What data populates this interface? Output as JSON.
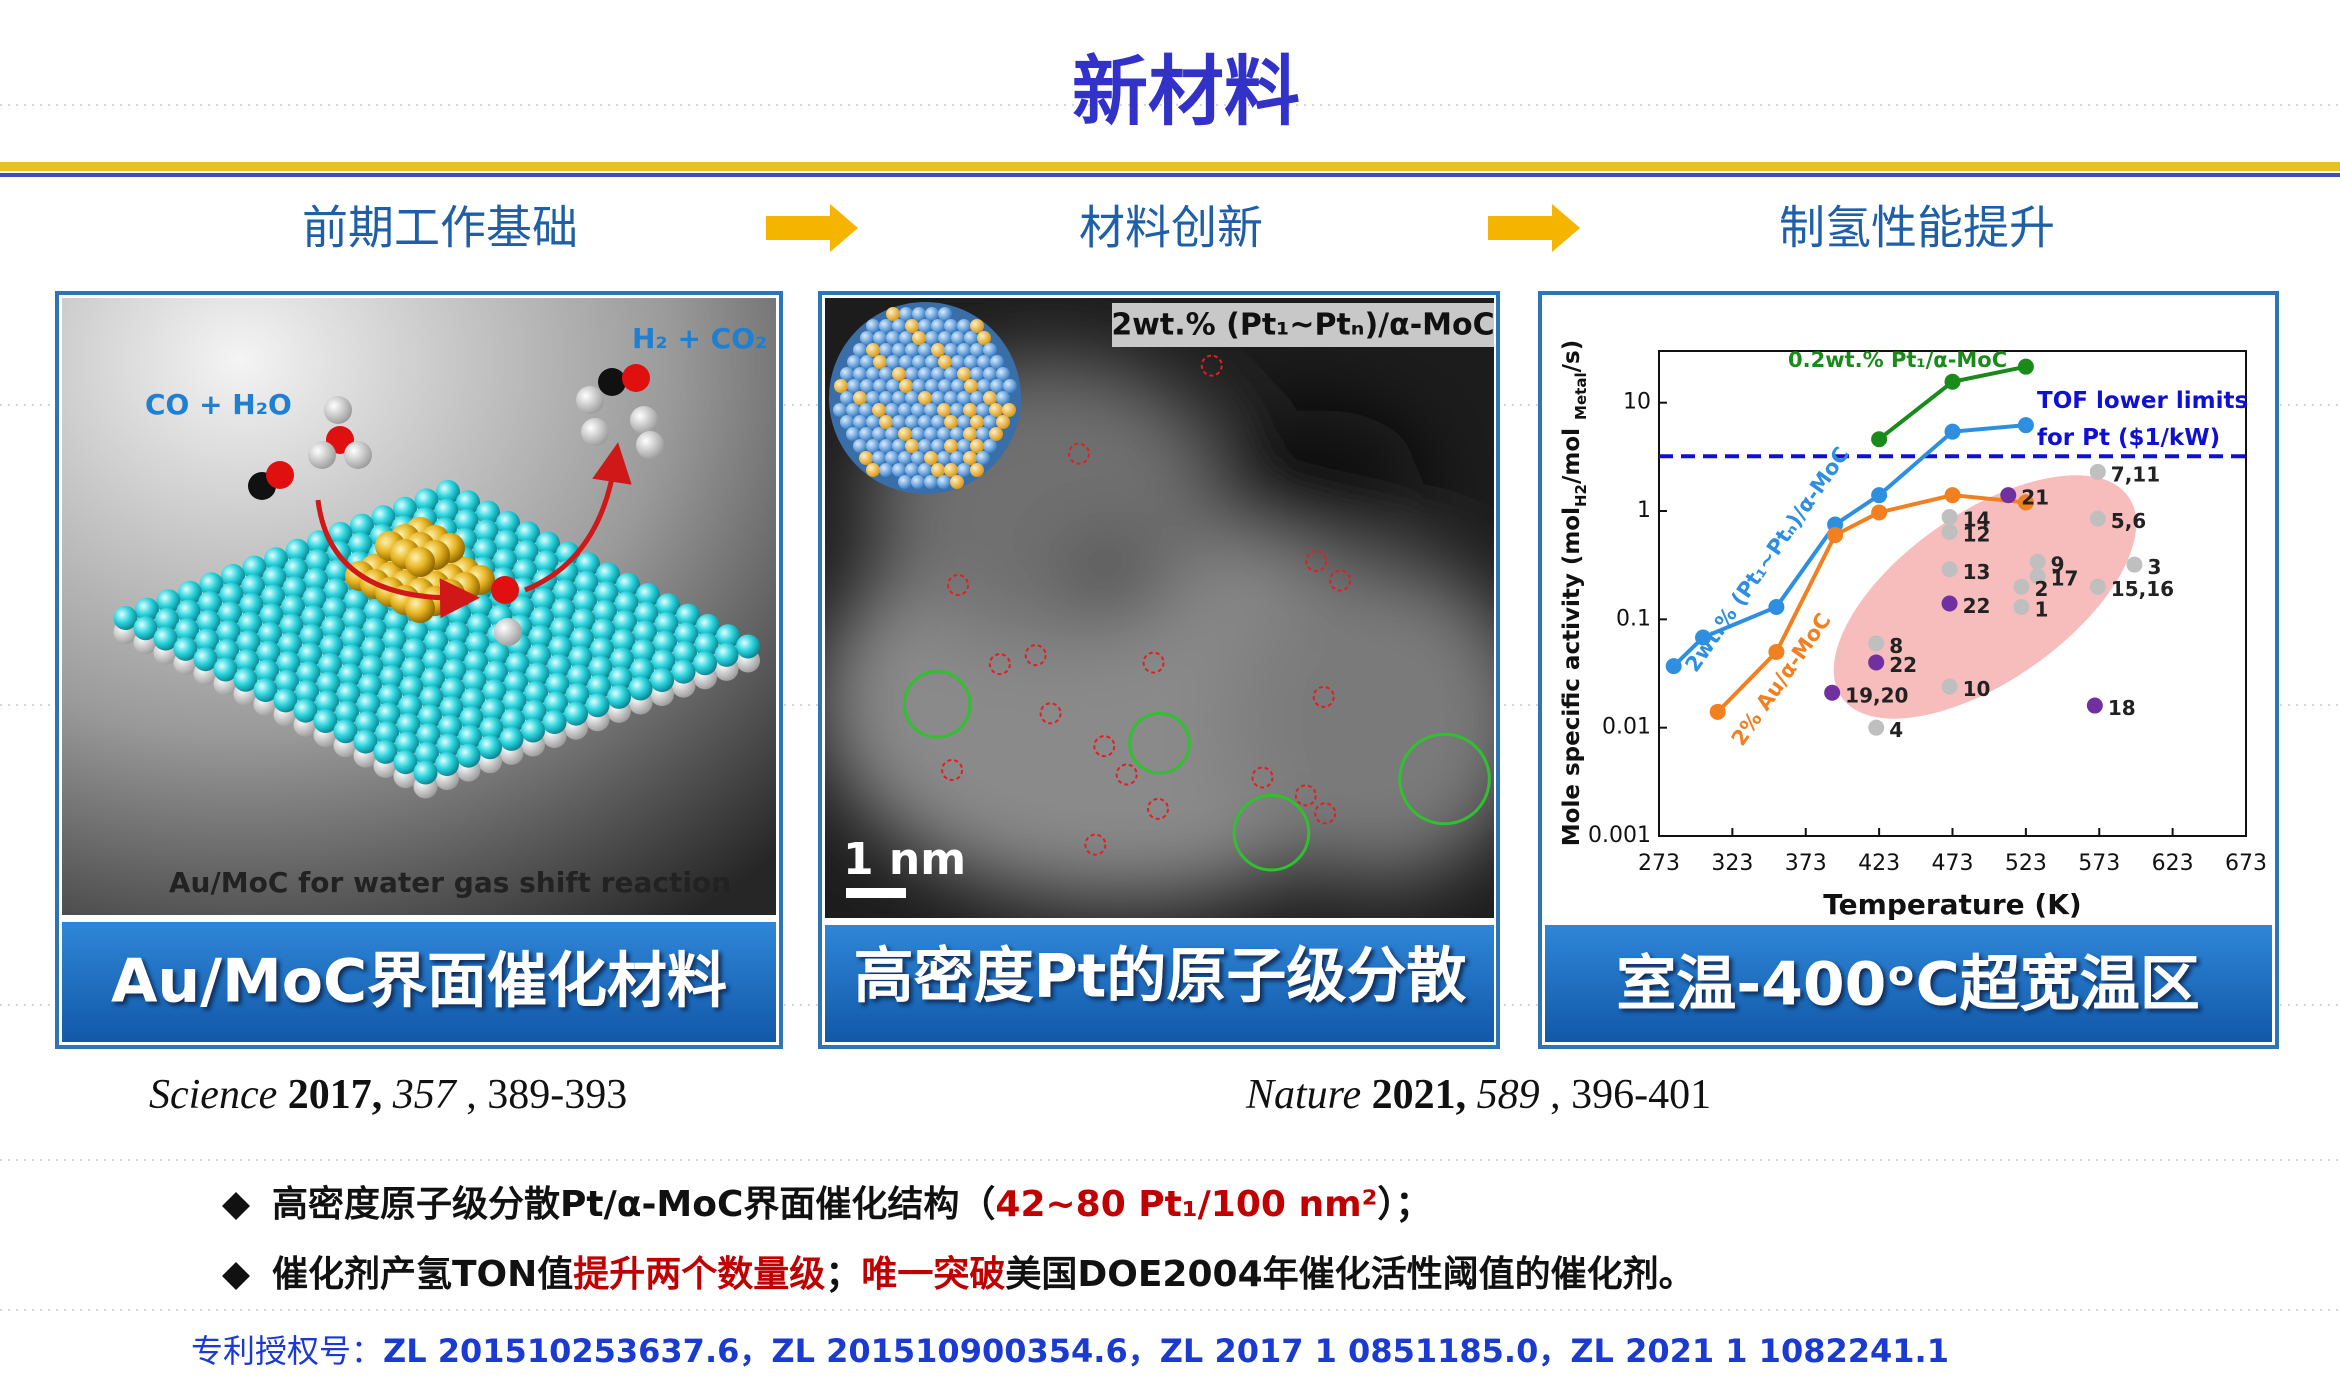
{
  "title": "新材料",
  "steps": [
    "前期工作基础",
    "材料创新",
    "制氢性能提升"
  ],
  "panels": [
    {
      "labels": [
        "CO + H₂O",
        "H₂ + CO₂",
        "Au/MoC for water gas shift reaction"
      ],
      "caption": "Au/MoC界面催化材料"
    },
    {
      "labels": [
        "2wt.% (Pt₁~Ptₙ)/α-MoC",
        "1 nm"
      ],
      "caption": "高密度Pt的原子级分散"
    },
    {
      "caption": "室温-400ᵒC超宽温区",
      "chart_data": {
        "type": "line",
        "x_label": "Temperature (K)",
        "y_label": [
          {
            "text": "Mole specific activity (mol"
          },
          {
            "text": "H2",
            "sub": true
          },
          {
            "text": "/mol "
          },
          {
            "text": "Metal",
            "sub": true
          },
          {
            "text": "/s)"
          }
        ],
        "xlim": [
          273,
          673
        ],
        "xticks": [
          273,
          323,
          373,
          423,
          473,
          523,
          573,
          623,
          673
        ],
        "ylim": [
          0.001,
          30
        ],
        "yticks": [
          0.001,
          0.01,
          0.1,
          1,
          10
        ],
        "log_y": true,
        "series": [
          {
            "name": "0.2wt.% Pt₁/α-MoC",
            "color": "#1a8a1a",
            "x": [
              423,
              473,
              523
            ],
            "values": [
              4.6,
              15.6,
              21.5
            ]
          },
          {
            "name": "2wt.% (Pt₁~Ptₙ)/α-MoC",
            "color": "#2e8ee0",
            "x": [
              283,
              303,
              353,
              393,
              423,
              473,
              523
            ],
            "values": [
              0.037,
              0.068,
              0.13,
              0.75,
              1.4,
              5.4,
              6.2
            ]
          },
          {
            "name": "2% Au/α-MoC",
            "color": "#f08020",
            "x": [
              313,
              353,
              393,
              423,
              473,
              523
            ],
            "values": [
              0.014,
              0.05,
              0.6,
              0.97,
              1.4,
              1.2
            ]
          }
        ],
        "reference": {
          "value": 3.2,
          "labels": [
            "TOF lower limits",
            "for Pt ($1/kW)"
          ],
          "color": "#1010d0"
        },
        "points": [
          {
            "label": "7,11",
            "x": 572,
            "y": 2.3,
            "color": "#bfbfbf"
          },
          {
            "label": "5,6",
            "x": 572,
            "y": 0.85,
            "color": "#bfbfbf"
          },
          {
            "label": "3",
            "x": 597,
            "y": 0.32,
            "color": "#bfbfbf"
          },
          {
            "label": "15,16",
            "x": 572,
            "y": 0.2,
            "color": "#bfbfbf"
          },
          {
            "label": "9",
            "x": 531,
            "y": 0.34,
            "color": "#bfbfbf"
          },
          {
            "label": "17",
            "x": 531,
            "y": 0.25,
            "color": "#bfbfbf"
          },
          {
            "label": "2",
            "x": 520,
            "y": 0.2,
            "color": "#bfbfbf"
          },
          {
            "label": "1",
            "x": 520,
            "y": 0.13,
            "color": "#bfbfbf"
          },
          {
            "label": "21",
            "x": 511,
            "y": 1.4,
            "color": "#7030a0"
          },
          {
            "label": "14",
            "x": 471,
            "y": 0.88,
            "color": "#bfbfbf"
          },
          {
            "label": "12",
            "x": 471,
            "y": 0.64,
            "color": "#bfbfbf"
          },
          {
            "label": "13",
            "x": 471,
            "y": 0.29,
            "color": "#bfbfbf"
          },
          {
            "label": "22",
            "x": 471,
            "y": 0.14,
            "color": "#7030a0"
          },
          {
            "label": "8",
            "x": 421,
            "y": 0.06,
            "color": "#bfbfbf"
          },
          {
            "label": "22",
            "x": 421,
            "y": 0.04,
            "color": "#7030a0"
          },
          {
            "label": "10",
            "x": 471,
            "y": 0.024,
            "color": "#bfbfbf"
          },
          {
            "label": "19,20",
            "x": 391,
            "y": 0.021,
            "color": "#7030a0"
          },
          {
            "label": "4",
            "x": 421,
            "y": 0.01,
            "color": "#bfbfbf"
          },
          {
            "label": "18",
            "x": 570,
            "y": 0.016,
            "color": "#7030a0"
          }
        ]
      }
    }
  ],
  "citations": [
    [
      {
        "text": "Science",
        "style": "italic"
      },
      {
        "text": " 2017,",
        "style": "bold"
      },
      {
        "text": " 357",
        "style": "italic"
      },
      {
        "text": " , 389-393",
        "style": "normal"
      }
    ],
    [
      {
        "text": "Nature",
        "style": "italic"
      },
      {
        "text": " 2021,",
        "style": "bold"
      },
      {
        "text": " 589",
        "style": "italic"
      },
      {
        "text": " , 396-401",
        "style": "normal"
      }
    ]
  ],
  "bullets": [
    [
      {
        "text": "高密度原子级分散Pt/α-MoC界面催化结构（",
        "color": "#111111"
      },
      {
        "text": "42~80 Pt₁/100 nm²",
        "color": "#c00000"
      },
      {
        "text": "）；",
        "color": "#111111"
      }
    ],
    [
      {
        "text": "催化剂产氢TON值",
        "color": "#111111"
      },
      {
        "text": "提升两个数量级",
        "color": "#c00000"
      },
      {
        "text": "；",
        "color": "#111111"
      },
      {
        "text": "唯一突破",
        "color": "#c00000"
      },
      {
        "text": "美国DOE2004年催化活性阈值的催化剂。",
        "color": "#111111"
      }
    ]
  ],
  "patent": {
    "label": "专利授权号：",
    "numbers": "ZL 201510253637.6，ZL 201510900354.6，ZL 2017 1 0851185.0，ZL 2021 1 1082241.1"
  }
}
